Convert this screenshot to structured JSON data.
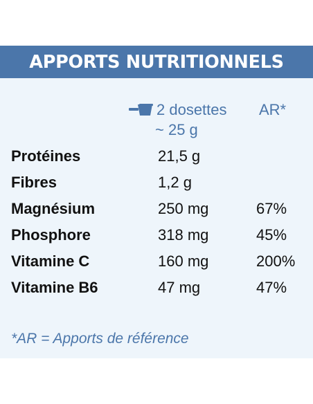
{
  "header": {
    "title": "APPORTS NUTRITIONNELS"
  },
  "serving": {
    "icon": "scoop-icon",
    "line1": "2 dosettes",
    "line2": "~ 25 g"
  },
  "ar_header": "AR*",
  "rows": [
    {
      "name": "Protéines",
      "amount": "21,5 g",
      "ar": ""
    },
    {
      "name": "Fibres",
      "amount": "1,2 g",
      "ar": ""
    },
    {
      "name": "Magnésium",
      "amount": "250 mg",
      "ar": "67%"
    },
    {
      "name": "Phosphore",
      "amount": "318 mg",
      "ar": "45%"
    },
    {
      "name": "Vitamine C",
      "amount": "160 mg",
      "ar": "200%"
    },
    {
      "name": "Vitamine B6",
      "amount": "47 mg",
      "ar": "47%"
    }
  ],
  "footnote": "*AR = Apports de référence",
  "colors": {
    "accent": "#4b76aa",
    "panel_background": "#eef5fb",
    "text": "#111111"
  }
}
